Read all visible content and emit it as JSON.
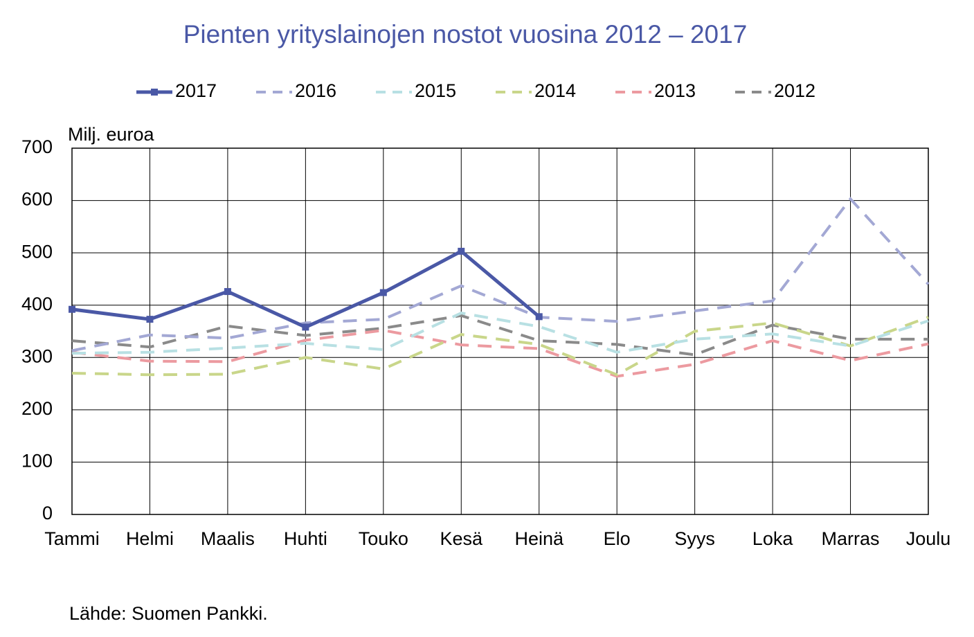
{
  "chart_data": {
    "type": "line",
    "title": "Pienten yrityslainojen nostot vuosina 2012 – 2017",
    "y_axis_label": "Milj. euroa",
    "source": "Lähde: Suomen Pankki.",
    "categories": [
      "Tammi",
      "Helmi",
      "Maalis",
      "Huhti",
      "Touko",
      "Kesä",
      "Heinä",
      "Elo",
      "Syys",
      "Loka",
      "Marras",
      "Joulu"
    ],
    "series": [
      {
        "name": "2017",
        "color": "#4a58a6",
        "dashed": false,
        "marker": "square",
        "values": [
          392,
          373,
          426,
          358,
          424,
          503,
          378,
          null,
          null,
          null,
          null,
          null
        ]
      },
      {
        "name": "2016",
        "color": "#a3a8d4",
        "dashed": true,
        "values": [
          313,
          343,
          337,
          366,
          373,
          437,
          377,
          369,
          389,
          408,
          603,
          440
        ]
      },
      {
        "name": "2015",
        "color": "#b8e0e3",
        "dashed": true,
        "values": [
          308,
          310,
          318,
          327,
          315,
          385,
          359,
          310,
          335,
          345,
          322,
          370
        ]
      },
      {
        "name": "2014",
        "color": "#c9d68a",
        "dashed": true,
        "values": [
          270,
          267,
          268,
          300,
          278,
          344,
          325,
          267,
          350,
          366,
          322,
          377
        ]
      },
      {
        "name": "2013",
        "color": "#ec9aa0",
        "dashed": true,
        "values": [
          310,
          293,
          292,
          333,
          352,
          324,
          317,
          264,
          287,
          332,
          294,
          326
        ]
      },
      {
        "name": "2012",
        "color": "#8a8a8a",
        "dashed": true,
        "values": [
          332,
          320,
          360,
          342,
          356,
          380,
          332,
          325,
          305,
          362,
          335,
          335
        ]
      }
    ],
    "ylim": [
      0,
      700
    ],
    "yticks": [
      0,
      100,
      200,
      300,
      400,
      500,
      600,
      700
    ],
    "grid": true,
    "legend": "top"
  }
}
